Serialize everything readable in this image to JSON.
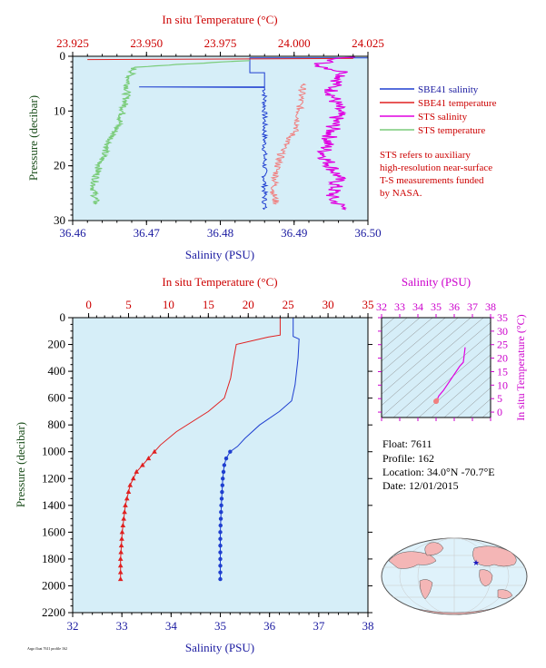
{
  "colors": {
    "axis_salinity": "#1a1aa0",
    "axis_temperature": "#cc0000",
    "axis_sts_salinity": "#cc00cc",
    "axis_pressure": "#1a4d1a",
    "plot_bg": "#d6eef8",
    "sbe_salinity": "#1f3fd0",
    "sbe_temperature": "#e02020",
    "sts_salinity": "#e000e0",
    "sts_temperature": "#7acc7a"
  },
  "top_chart": {
    "legend": {
      "sbe_salinity": "SBE41 salinity",
      "sbe_temperature": "SBE41 temperature",
      "sts_salinity": "STS salinity",
      "sts_temperature": "STS temperature"
    },
    "note": [
      "STS refers to auxiliary",
      "high-resolution near-surface",
      "T-S measurements funded",
      "by NASA."
    ]
  },
  "info": {
    "float_line": "Float:  7611",
    "profile_line": "Profile:  162",
    "location_line": "Location:  34.0°N  -70.7°E",
    "date_line": "Date:  12/01/2015"
  },
  "footer_text": "Argo float 7611 profile 162",
  "chart_data": [
    {
      "id": "near-surface",
      "type": "line",
      "title": "",
      "xlabel_bottom": "Salinity (PSU)",
      "xlabel_top": "In situ Temperature (°C)",
      "ylabel": "Pressure (decibar)",
      "xlim_bottom": [
        36.46,
        36.5
      ],
      "xticks_bottom": [
        "36.46",
        "36.47",
        "36.48",
        "36.49",
        "36.50"
      ],
      "xlim_top": [
        23.925,
        24.025
      ],
      "xticks_top": [
        "23.925",
        "23.950",
        "23.975",
        "24.000",
        "24.025"
      ],
      "ylim": [
        0,
        30
      ],
      "yticks": [
        "0",
        "10",
        "20",
        "30"
      ],
      "y_inverted": true,
      "series": [
        {
          "name": "SBE41 salinity",
          "axis": "bottom",
          "points": [
            [
              36.5,
              0.3
            ],
            [
              36.484,
              0.3
            ],
            [
              36.484,
              3
            ],
            [
              36.486,
              3
            ],
            [
              36.486,
              5.6
            ],
            [
              36.469,
              5.6
            ],
            [
              36.486,
              5.7
            ],
            [
              36.486,
              28
            ]
          ]
        },
        {
          "name": "SBE41 temperature",
          "axis": "top",
          "points": [
            [
              24.02,
              0.4
            ],
            [
              23.93,
              0.6
            ]
          ]
        },
        {
          "name": "STS salinity",
          "axis": "bottom",
          "points": [
            [
              36.498,
              0
            ],
            [
              36.493,
              1.5
            ],
            [
              36.497,
              3
            ],
            [
              36.495,
              6
            ],
            [
              36.496,
              10
            ],
            [
              36.495,
              14
            ],
            [
              36.494,
              18
            ],
            [
              36.496,
              22
            ],
            [
              36.495,
              26
            ],
            [
              36.497,
              28
            ]
          ]
        },
        {
          "name": "STS temperature",
          "axis": "top",
          "points": [
            [
              23.985,
              0.8
            ],
            [
              23.96,
              1.5
            ],
            [
              23.946,
              2
            ],
            [
              23.944,
              4
            ],
            [
              23.943,
              8
            ],
            [
              23.941,
              12
            ],
            [
              23.937,
              16
            ],
            [
              23.934,
              20
            ],
            [
              23.932,
              24
            ],
            [
              23.933,
              27
            ]
          ]
        }
      ]
    },
    {
      "id": "full-profile",
      "type": "line",
      "title": "",
      "xlabel_bottom": "Salinity (PSU)",
      "xlabel_top": "In situ Temperature (°C)",
      "ylabel": "Pressure (decibar)",
      "xlim_bottom": [
        32,
        38
      ],
      "xticks_bottom": [
        "32",
        "33",
        "34",
        "35",
        "36",
        "37",
        "38"
      ],
      "xlim_top": [
        -2,
        35
      ],
      "xticks_top": [
        "0",
        "5",
        "10",
        "15",
        "20",
        "25",
        "30",
        "35"
      ],
      "ylim": [
        0,
        2200
      ],
      "yticks": [
        "0",
        "200",
        "400",
        "600",
        "800",
        "1000",
        "1200",
        "1400",
        "1600",
        "1800",
        "2000",
        "2200"
      ],
      "y_inverted": true,
      "series": [
        {
          "name": "Salinity",
          "axis": "bottom",
          "points": [
            [
              36.48,
              0
            ],
            [
              36.48,
              140
            ],
            [
              36.6,
              160
            ],
            [
              36.58,
              300
            ],
            [
              36.52,
              500
            ],
            [
              36.45,
              620
            ],
            [
              36.2,
              700
            ],
            [
              35.8,
              800
            ],
            [
              35.5,
              900
            ],
            [
              35.35,
              960
            ],
            [
              35.2,
              1000
            ],
            [
              35.12,
              1050
            ],
            [
              35.08,
              1100
            ],
            [
              35.05,
              1200
            ],
            [
              35.02,
              1400
            ],
            [
              35.0,
              1600
            ],
            [
              35.0,
              1800
            ],
            [
              35.0,
              1950
            ]
          ]
        },
        {
          "name": "Temperature",
          "axis": "top",
          "points": [
            [
              24.0,
              0
            ],
            [
              24.0,
              130
            ],
            [
              22.5,
              145
            ],
            [
              18.5,
              200
            ],
            [
              18.2,
              300
            ],
            [
              17.8,
              450
            ],
            [
              17.0,
              600
            ],
            [
              15.0,
              700
            ],
            [
              11.0,
              850
            ],
            [
              9.0,
              950
            ],
            [
              7.5,
              1050
            ],
            [
              6.0,
              1150
            ],
            [
              5.2,
              1250
            ],
            [
              4.6,
              1400
            ],
            [
              4.2,
              1600
            ],
            [
              4.0,
              1800
            ],
            [
              4.0,
              1950
            ]
          ]
        }
      ],
      "markers_pressure": [
        1000,
        1050,
        1100,
        1150,
        1200,
        1250,
        1300,
        1350,
        1400,
        1450,
        1500,
        1550,
        1600,
        1650,
        1700,
        1750,
        1800,
        1850,
        1900,
        1950
      ]
    },
    {
      "id": "ts-diagram",
      "type": "scatter",
      "title": "",
      "xlabel": "Salinity (PSU)",
      "ylabel": "In situ Temperature (°C)",
      "xlim": [
        32,
        38
      ],
      "xticks": [
        "32",
        "33",
        "34",
        "35",
        "36",
        "37",
        "38"
      ],
      "ylim": [
        -2,
        35
      ],
      "yticks": [
        "0",
        "5",
        "10",
        "15",
        "20",
        "25",
        "30",
        "35"
      ],
      "series": [
        {
          "name": "T-S",
          "points": [
            [
              36.6,
              24
            ],
            [
              36.5,
              18.5
            ],
            [
              36.3,
              17
            ],
            [
              35.8,
              12
            ],
            [
              35.4,
              8
            ],
            [
              35.15,
              6
            ],
            [
              35.05,
              4.5
            ],
            [
              35.0,
              4
            ]
          ]
        }
      ]
    }
  ]
}
